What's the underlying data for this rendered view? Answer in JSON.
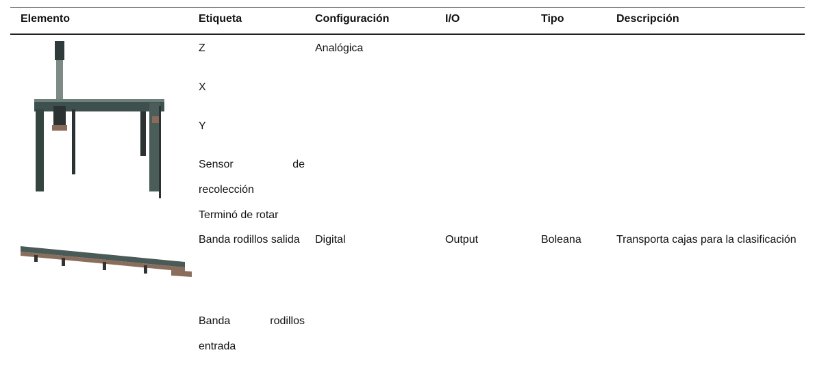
{
  "table": {
    "columns": [
      "Elemento",
      "Etiqueta",
      "Configuración",
      "I/O",
      "Tipo",
      "Descripción"
    ],
    "rows": [
      {
        "etiquetas": [
          "Z",
          "X",
          "Y",
          "Sensor de recolección",
          "Terminó de rotar"
        ],
        "configuracion": "Analógica"
      },
      {
        "etiquetas": [
          "Banda rodillos salida",
          "Banda rodillos entrada"
        ],
        "configuracion": "Digital",
        "io": "Output",
        "tipo": "Boleana",
        "descripcion": "Transporta cajas para la clasificación"
      }
    ]
  }
}
